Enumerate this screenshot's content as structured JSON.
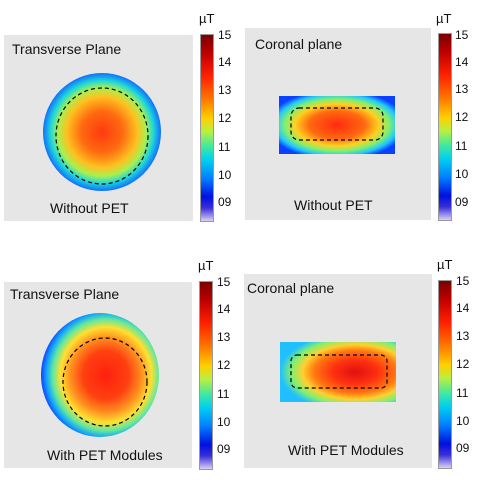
{
  "unit": "µT",
  "colorbar_ticks": [
    "15",
    "14",
    "13",
    "12",
    "11",
    "10",
    "09"
  ],
  "panels": {
    "top_left": {
      "title": "Transverse Plane",
      "subtitle": "Without PET"
    },
    "top_right": {
      "title": "Coronal plane",
      "subtitle": "Without PET"
    },
    "bottom_left": {
      "title": "Transverse Plane",
      "subtitle": "With PET Modules"
    },
    "bottom_right": {
      "title": "Coronal plane",
      "subtitle": "With PET Modules"
    }
  },
  "colors": {
    "panel_background": "#e6e6e6",
    "dashed_outline": "#000000"
  }
}
